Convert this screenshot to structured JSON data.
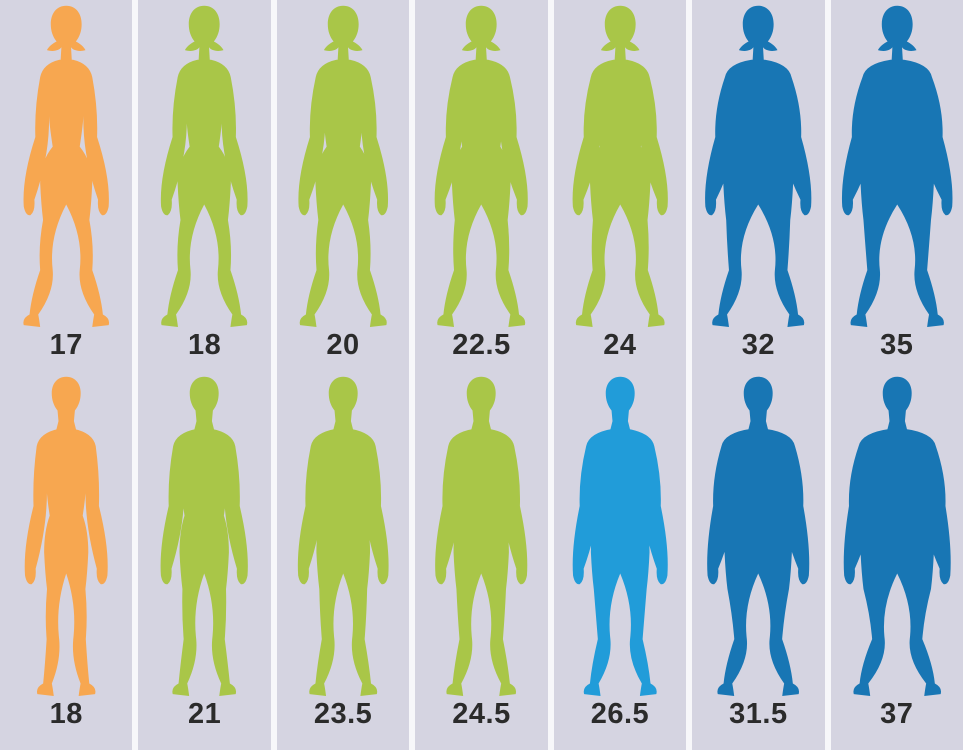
{
  "chart_data": {
    "type": "table",
    "title": "",
    "columns": 7,
    "rows": [
      {
        "name": "female-row",
        "values": [
          17,
          18,
          20,
          22.5,
          24,
          32,
          35
        ]
      },
      {
        "name": "male-row",
        "values": [
          18,
          21,
          23.5,
          24.5,
          26.5,
          31.5,
          37
        ]
      }
    ],
    "layout": {
      "grid": false,
      "legend": "none",
      "row_order": [
        "female-row",
        "male-row"
      ]
    }
  },
  "figures": {
    "female": [
      {
        "label": "17",
        "bmi": 17,
        "color": "#F7A750",
        "sex": "female"
      },
      {
        "label": "18",
        "bmi": 18,
        "color": "#A9C648",
        "sex": "female"
      },
      {
        "label": "20",
        "bmi": 20,
        "color": "#A9C648",
        "sex": "female"
      },
      {
        "label": "22.5",
        "bmi": 22.5,
        "color": "#A9C648",
        "sex": "female"
      },
      {
        "label": "24",
        "bmi": 24,
        "color": "#A9C648",
        "sex": "female"
      },
      {
        "label": "32",
        "bmi": 32,
        "color": "#1876B4",
        "sex": "female"
      },
      {
        "label": "35",
        "bmi": 35,
        "color": "#1876B4",
        "sex": "female"
      }
    ],
    "male": [
      {
        "label": "18",
        "bmi": 18,
        "color": "#F7A750",
        "sex": "male"
      },
      {
        "label": "21",
        "bmi": 21,
        "color": "#A9C648",
        "sex": "male"
      },
      {
        "label": "23.5",
        "bmi": 23.5,
        "color": "#A9C648",
        "sex": "male"
      },
      {
        "label": "24.5",
        "bmi": 24.5,
        "color": "#A9C648",
        "sex": "male"
      },
      {
        "label": "26.5",
        "bmi": 26.5,
        "color": "#219CD9",
        "sex": "male"
      },
      {
        "label": "31.5",
        "bmi": 31.5,
        "color": "#1876B4",
        "sex": "male"
      },
      {
        "label": "37",
        "bmi": 37,
        "color": "#1876B4",
        "sex": "male"
      }
    ]
  },
  "colors": {
    "background": "#D5D4E1",
    "separator": "#F7F7FA",
    "label_text": "#2B2B2B",
    "underweight": "#F7A750",
    "normal": "#A9C648",
    "overweight": "#219CD9",
    "obese": "#1876B4"
  }
}
